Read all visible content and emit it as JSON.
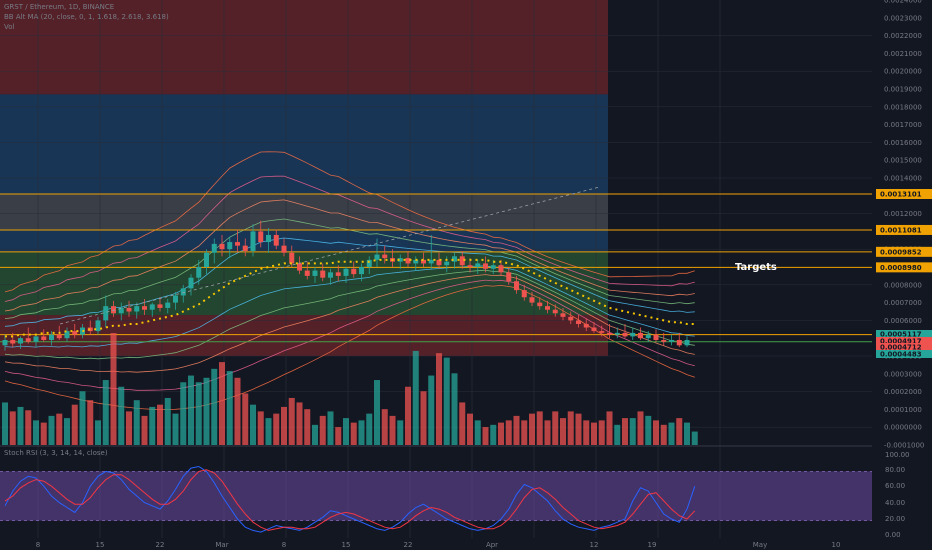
{
  "header": {
    "symbol_line": "GRST / Ethereum, 1D, BINANCE",
    "indicator_line": "BB Alt MA (20, close, 0, 1, 1.618, 2.618, 3.618)",
    "volume_label": "Vol"
  },
  "stoch": {
    "label": "Stoch RSI (3, 3, 14, 14, close)",
    "ticks": [
      "100.00",
      "80.00",
      "60.00",
      "40.00",
      "20.00",
      "0.00"
    ]
  },
  "annotation": {
    "targets_label": "Targets"
  },
  "price_axis": {
    "ticks": [
      "0.0024000",
      "0.0023000",
      "0.0022000",
      "0.0021000",
      "0.0020000",
      "0.0019000",
      "0.0018000",
      "0.0017000",
      "0.0016000",
      "0.0015000",
      "0.0014000",
      "0.0013000",
      "0.0012000",
      "0.0011000",
      "0.0010000",
      "0.0009000",
      "0.0008000",
      "0.0007000",
      "0.0006000",
      "0.0005000",
      "0.0004000",
      "0.0003000",
      "0.0002000",
      "0.0001000",
      "0.0000000",
      "-0.0001000"
    ]
  },
  "time_axis": {
    "labels": [
      "8",
      "15",
      "22",
      "Mar",
      "8",
      "15",
      "22",
      "Apr",
      "12",
      "19",
      "May",
      "10"
    ]
  },
  "colors": {
    "background": "#131722",
    "up": "#26a69a",
    "down": "#ef5350",
    "level": "#f0a202",
    "stoch_k": "#2962ff",
    "stoch_d": "#f23645",
    "stoch_band": "#7e57c2"
  },
  "chart_data": {
    "type": "candlestick",
    "title": "GRST / Ethereum, 1D, BINANCE",
    "ylim": [
      -0.0001,
      0.0024
    ],
    "x_labels": [
      "8",
      "15",
      "22",
      "Mar",
      "8",
      "15",
      "22",
      "Apr",
      "12",
      "19",
      "May",
      "10"
    ],
    "price_levels": [
      {
        "label": "0.0013101",
        "value": 0.0013101
      },
      {
        "label": "0.0011081",
        "value": 0.0011081
      },
      {
        "label": "0.0009852",
        "value": 0.0009852
      },
      {
        "label": "0.0008980",
        "value": 0.000898
      }
    ],
    "last_price_tags": [
      {
        "label": "0.0005117",
        "value": 0.0005117,
        "color": "#26a69a"
      },
      {
        "label": "0.0004917",
        "value": 0.0004917,
        "color": "#ef5350"
      },
      {
        "label": "0.0004712",
        "value": 0.0004712,
        "color": "#ef5350"
      },
      {
        "label": "0.0004483",
        "value": 0.0004483,
        "color": "#26a69a"
      }
    ],
    "zones": [
      {
        "from": 0.0024,
        "to": 0.00187,
        "color": "#8b2a2e"
      },
      {
        "from": 0.00187,
        "to": 0.00131,
        "color": "#1e4e80"
      },
      {
        "from": 0.00131,
        "to": 0.00111,
        "color": "#5a5e66"
      },
      {
        "from": 0.00111,
        "to": 0.000985,
        "color": "#1e4e80"
      },
      {
        "from": 0.000985,
        "to": 0.000898,
        "color": "#2f6e3a"
      },
      {
        "from": 0.000898,
        "to": 0.00063,
        "color": "#2f6e3a"
      },
      {
        "from": 0.00063,
        "to": 0.00048,
        "color": "#8b2a2e"
      },
      {
        "from": 0.00048,
        "to": 0.0004,
        "color": "#8b2a2e"
      }
    ],
    "candles": [
      {
        "o": 0.00046,
        "h": 0.00052,
        "l": 0.00043,
        "c": 0.00049
      },
      {
        "o": 0.00049,
        "h": 0.00053,
        "l": 0.00045,
        "c": 0.00047
      },
      {
        "o": 0.00047,
        "h": 0.00051,
        "l": 0.00044,
        "c": 0.0005
      },
      {
        "o": 0.0005,
        "h": 0.00056,
        "l": 0.00047,
        "c": 0.00048
      },
      {
        "o": 0.00048,
        "h": 0.00052,
        "l": 0.00045,
        "c": 0.00051
      },
      {
        "o": 0.00051,
        "h": 0.00055,
        "l": 0.00048,
        "c": 0.00049
      },
      {
        "o": 0.00049,
        "h": 0.00054,
        "l": 0.00046,
        "c": 0.00052
      },
      {
        "o": 0.00052,
        "h": 0.00057,
        "l": 0.00049,
        "c": 0.0005
      },
      {
        "o": 0.0005,
        "h": 0.00056,
        "l": 0.00048,
        "c": 0.00054
      },
      {
        "o": 0.00054,
        "h": 0.00058,
        "l": 0.0005,
        "c": 0.00052
      },
      {
        "o": 0.00052,
        "h": 0.00058,
        "l": 0.0005,
        "c": 0.00056
      },
      {
        "o": 0.00056,
        "h": 0.0006,
        "l": 0.00052,
        "c": 0.00054
      },
      {
        "o": 0.00054,
        "h": 0.00062,
        "l": 0.00052,
        "c": 0.0006
      },
      {
        "o": 0.0006,
        "h": 0.00074,
        "l": 0.00056,
        "c": 0.00068
      },
      {
        "o": 0.00068,
        "h": 0.00071,
        "l": 0.00062,
        "c": 0.00064
      },
      {
        "o": 0.00064,
        "h": 0.0007,
        "l": 0.0006,
        "c": 0.00067
      },
      {
        "o": 0.00067,
        "h": 0.00071,
        "l": 0.00062,
        "c": 0.00065
      },
      {
        "o": 0.00065,
        "h": 0.0007,
        "l": 0.00061,
        "c": 0.00068
      },
      {
        "o": 0.00068,
        "h": 0.00072,
        "l": 0.00063,
        "c": 0.00066
      },
      {
        "o": 0.00066,
        "h": 0.0007,
        "l": 0.00062,
        "c": 0.00069
      },
      {
        "o": 0.00069,
        "h": 0.00073,
        "l": 0.00065,
        "c": 0.00067
      },
      {
        "o": 0.00067,
        "h": 0.00072,
        "l": 0.00064,
        "c": 0.0007
      },
      {
        "o": 0.0007,
        "h": 0.00076,
        "l": 0.00066,
        "c": 0.00074
      },
      {
        "o": 0.00074,
        "h": 0.0008,
        "l": 0.0007,
        "c": 0.00078
      },
      {
        "o": 0.00078,
        "h": 0.00086,
        "l": 0.00074,
        "c": 0.00084
      },
      {
        "o": 0.00084,
        "h": 0.00094,
        "l": 0.0008,
        "c": 0.0009
      },
      {
        "o": 0.0009,
        "h": 0.001,
        "l": 0.00086,
        "c": 0.00098
      },
      {
        "o": 0.00098,
        "h": 0.00106,
        "l": 0.00092,
        "c": 0.00103
      },
      {
        "o": 0.00103,
        "h": 0.00108,
        "l": 0.00096,
        "c": 0.001
      },
      {
        "o": 0.001,
        "h": 0.00107,
        "l": 0.00095,
        "c": 0.00104
      },
      {
        "o": 0.00104,
        "h": 0.00111,
        "l": 0.00098,
        "c": 0.00102
      },
      {
        "o": 0.00102,
        "h": 0.00106,
        "l": 0.00096,
        "c": 0.00099
      },
      {
        "o": 0.00099,
        "h": 0.00114,
        "l": 0.00096,
        "c": 0.0011
      },
      {
        "o": 0.0011,
        "h": 0.00116,
        "l": 0.00101,
        "c": 0.00104
      },
      {
        "o": 0.00104,
        "h": 0.00112,
        "l": 0.00098,
        "c": 0.00108
      },
      {
        "o": 0.00108,
        "h": 0.00111,
        "l": 0.001,
        "c": 0.00102
      },
      {
        "o": 0.00102,
        "h": 0.00106,
        "l": 0.00096,
        "c": 0.00098
      },
      {
        "o": 0.00098,
        "h": 0.00102,
        "l": 0.0009,
        "c": 0.00092
      },
      {
        "o": 0.00092,
        "h": 0.00096,
        "l": 0.00086,
        "c": 0.00088
      },
      {
        "o": 0.00088,
        "h": 0.00093,
        "l": 0.00083,
        "c": 0.00085
      },
      {
        "o": 0.00085,
        "h": 0.0009,
        "l": 0.00081,
        "c": 0.00088
      },
      {
        "o": 0.00088,
        "h": 0.00092,
        "l": 0.00082,
        "c": 0.00084
      },
      {
        "o": 0.00084,
        "h": 0.00089,
        "l": 0.0008,
        "c": 0.00087
      },
      {
        "o": 0.00087,
        "h": 0.00091,
        "l": 0.00082,
        "c": 0.00085
      },
      {
        "o": 0.00085,
        "h": 0.0009,
        "l": 0.00081,
        "c": 0.00089
      },
      {
        "o": 0.00089,
        "h": 0.00093,
        "l": 0.00084,
        "c": 0.00086
      },
      {
        "o": 0.00086,
        "h": 0.00092,
        "l": 0.00082,
        "c": 0.0009
      },
      {
        "o": 0.0009,
        "h": 0.00096,
        "l": 0.00086,
        "c": 0.00094
      },
      {
        "o": 0.00094,
        "h": 0.00106,
        "l": 0.0009,
        "c": 0.00097
      },
      {
        "o": 0.00097,
        "h": 0.00102,
        "l": 0.00092,
        "c": 0.00095
      },
      {
        "o": 0.00095,
        "h": 0.001,
        "l": 0.0009,
        "c": 0.00093
      },
      {
        "o": 0.00093,
        "h": 0.00097,
        "l": 0.00089,
        "c": 0.00095
      },
      {
        "o": 0.00095,
        "h": 0.00099,
        "l": 0.0009,
        "c": 0.00092
      },
      {
        "o": 0.00092,
        "h": 0.00096,
        "l": 0.00088,
        "c": 0.00094
      },
      {
        "o": 0.00094,
        "h": 0.00098,
        "l": 0.0009,
        "c": 0.00092
      },
      {
        "o": 0.00092,
        "h": 0.00108,
        "l": 0.00089,
        "c": 0.00094
      },
      {
        "o": 0.00094,
        "h": 0.00098,
        "l": 0.00089,
        "c": 0.00091
      },
      {
        "o": 0.00091,
        "h": 0.00096,
        "l": 0.00087,
        "c": 0.00093
      },
      {
        "o": 0.00093,
        "h": 0.00098,
        "l": 0.00089,
        "c": 0.00096
      },
      {
        "o": 0.00096,
        "h": 0.00099,
        "l": 0.00089,
        "c": 0.00091
      },
      {
        "o": 0.00091,
        "h": 0.00095,
        "l": 0.00087,
        "c": 0.0009
      },
      {
        "o": 0.0009,
        "h": 0.00094,
        "l": 0.00086,
        "c": 0.00092
      },
      {
        "o": 0.00092,
        "h": 0.00096,
        "l": 0.00087,
        "c": 0.00089
      },
      {
        "o": 0.00089,
        "h": 0.00094,
        "l": 0.00086,
        "c": 0.00091
      },
      {
        "o": 0.00091,
        "h": 0.00094,
        "l": 0.00085,
        "c": 0.00087
      },
      {
        "o": 0.00087,
        "h": 0.0009,
        "l": 0.0008,
        "c": 0.00082
      },
      {
        "o": 0.00082,
        "h": 0.00085,
        "l": 0.00075,
        "c": 0.00077
      },
      {
        "o": 0.00077,
        "h": 0.0008,
        "l": 0.00071,
        "c": 0.00073
      },
      {
        "o": 0.00073,
        "h": 0.00076,
        "l": 0.00068,
        "c": 0.0007
      },
      {
        "o": 0.0007,
        "h": 0.00073,
        "l": 0.00066,
        "c": 0.00068
      },
      {
        "o": 0.00068,
        "h": 0.00071,
        "l": 0.00064,
        "c": 0.00066
      },
      {
        "o": 0.00066,
        "h": 0.00069,
        "l": 0.00062,
        "c": 0.00064
      },
      {
        "o": 0.00064,
        "h": 0.00067,
        "l": 0.0006,
        "c": 0.00062
      },
      {
        "o": 0.00062,
        "h": 0.00065,
        "l": 0.00058,
        "c": 0.0006
      },
      {
        "o": 0.0006,
        "h": 0.00063,
        "l": 0.00056,
        "c": 0.00058
      },
      {
        "o": 0.00058,
        "h": 0.00061,
        "l": 0.00054,
        "c": 0.00056
      },
      {
        "o": 0.00056,
        "h": 0.00059,
        "l": 0.00053,
        "c": 0.00054
      },
      {
        "o": 0.00054,
        "h": 0.00057,
        "l": 0.00051,
        "c": 0.00053
      },
      {
        "o": 0.00053,
        "h": 0.00058,
        "l": 0.0005,
        "c": 0.00052
      },
      {
        "o": 0.00052,
        "h": 0.00056,
        "l": 0.0005,
        "c": 0.00053
      },
      {
        "o": 0.00053,
        "h": 0.00058,
        "l": 0.0005,
        "c": 0.00051
      },
      {
        "o": 0.00051,
        "h": 0.00056,
        "l": 0.00049,
        "c": 0.00053
      },
      {
        "o": 0.00053,
        "h": 0.00056,
        "l": 0.00049,
        "c": 0.0005
      },
      {
        "o": 0.0005,
        "h": 0.00054,
        "l": 0.00048,
        "c": 0.00052
      },
      {
        "o": 0.00052,
        "h": 0.00055,
        "l": 0.00048,
        "c": 0.00049
      },
      {
        "o": 0.00049,
        "h": 0.00053,
        "l": 0.00046,
        "c": 0.00048
      },
      {
        "o": 0.00048,
        "h": 0.00052,
        "l": 0.00046,
        "c": 0.00049
      },
      {
        "o": 0.00049,
        "h": 0.00053,
        "l": 0.00045,
        "c": 0.00046
      },
      {
        "o": 0.00046,
        "h": 0.00051,
        "l": 0.00045,
        "c": 0.00049
      }
    ],
    "ma_dotted": [
      0.00051,
      0.00051,
      0.00052,
      0.00052,
      0.00052,
      0.00053,
      0.00053,
      0.00053,
      0.00054,
      0.00054,
      0.00054,
      0.00055,
      0.00055,
      0.00056,
      0.00057,
      0.00057,
      0.00058,
      0.00058,
      0.00059,
      0.0006,
      0.00061,
      0.00062,
      0.00063,
      0.00065,
      0.00067,
      0.00069,
      0.00072,
      0.00075,
      0.00078,
      0.00081,
      0.00083,
      0.00085,
      0.00087,
      0.00089,
      0.0009,
      0.00091,
      0.00092,
      0.00092,
      0.00092,
      0.00092,
      0.00092,
      0.00092,
      0.00092,
      0.00093,
      0.00093,
      0.00093,
      0.00093,
      0.00093,
      0.00094,
      0.00094,
      0.00094,
      0.00094,
      0.00094,
      0.00094,
      0.00094,
      0.00094,
      0.00094,
      0.00094,
      0.00094,
      0.00094,
      0.00094,
      0.00094,
      0.00094,
      0.00093,
      0.00093,
      0.00092,
      0.00091,
      0.00089,
      0.00087,
      0.00085,
      0.00083,
      0.00081,
      0.00079,
      0.00077,
      0.00075,
      0.00073,
      0.00071,
      0.00069,
      0.00067,
      0.00066,
      0.00065,
      0.00064,
      0.00063,
      0.00062,
      0.00061,
      0.0006,
      0.00059,
      0.00059,
      0.00058,
      0.00058
    ],
    "volume": [
      38,
      30,
      34,
      31,
      22,
      20,
      26,
      28,
      24,
      36,
      48,
      40,
      22,
      58,
      100,
      52,
      30,
      40,
      26,
      34,
      36,
      42,
      28,
      56,
      62,
      56,
      60,
      68,
      74,
      66,
      60,
      46,
      36,
      30,
      24,
      28,
      34,
      42,
      38,
      32,
      18,
      26,
      30,
      16,
      24,
      20,
      22,
      28,
      58,
      32,
      26,
      22,
      52,
      84,
      48,
      62,
      82,
      78,
      64,
      38,
      28,
      22,
      16,
      18,
      20,
      22,
      26,
      22,
      28,
      30,
      22,
      30,
      24,
      30,
      28,
      22,
      20,
      22,
      30,
      18,
      24,
      24,
      30,
      26,
      22,
      18,
      20,
      24,
      20,
      12
    ],
    "stoch_k": [
      38,
      56,
      68,
      74,
      72,
      62,
      50,
      42,
      36,
      30,
      42,
      62,
      74,
      80,
      78,
      70,
      58,
      50,
      42,
      38,
      34,
      44,
      58,
      74,
      84,
      86,
      80,
      66,
      50,
      36,
      22,
      12,
      8,
      6,
      10,
      14,
      12,
      10,
      8,
      12,
      18,
      24,
      32,
      30,
      26,
      22,
      18,
      14,
      10,
      8,
      12,
      18,
      28,
      36,
      40,
      34,
      28,
      22,
      18,
      14,
      10,
      8,
      10,
      14,
      22,
      34,
      52,
      64,
      60,
      52,
      44,
      32,
      22,
      16,
      12,
      10,
      8,
      12,
      14,
      18,
      22,
      44,
      60,
      56,
      42,
      28,
      22,
      18,
      34,
      62
    ],
    "stoch_d": [
      44,
      50,
      60,
      66,
      70,
      68,
      62,
      54,
      46,
      40,
      40,
      48,
      60,
      70,
      76,
      76,
      70,
      62,
      54,
      46,
      40,
      40,
      46,
      56,
      70,
      80,
      82,
      78,
      68,
      54,
      40,
      28,
      18,
      12,
      8,
      10,
      12,
      12,
      10,
      10,
      12,
      18,
      24,
      28,
      30,
      28,
      24,
      20,
      16,
      12,
      10,
      12,
      18,
      26,
      32,
      36,
      34,
      30,
      24,
      20,
      16,
      12,
      10,
      10,
      14,
      22,
      34,
      48,
      58,
      60,
      54,
      46,
      36,
      28,
      20,
      16,
      12,
      10,
      12,
      14,
      18,
      28,
      40,
      52,
      54,
      44,
      34,
      26,
      22,
      32
    ]
  }
}
